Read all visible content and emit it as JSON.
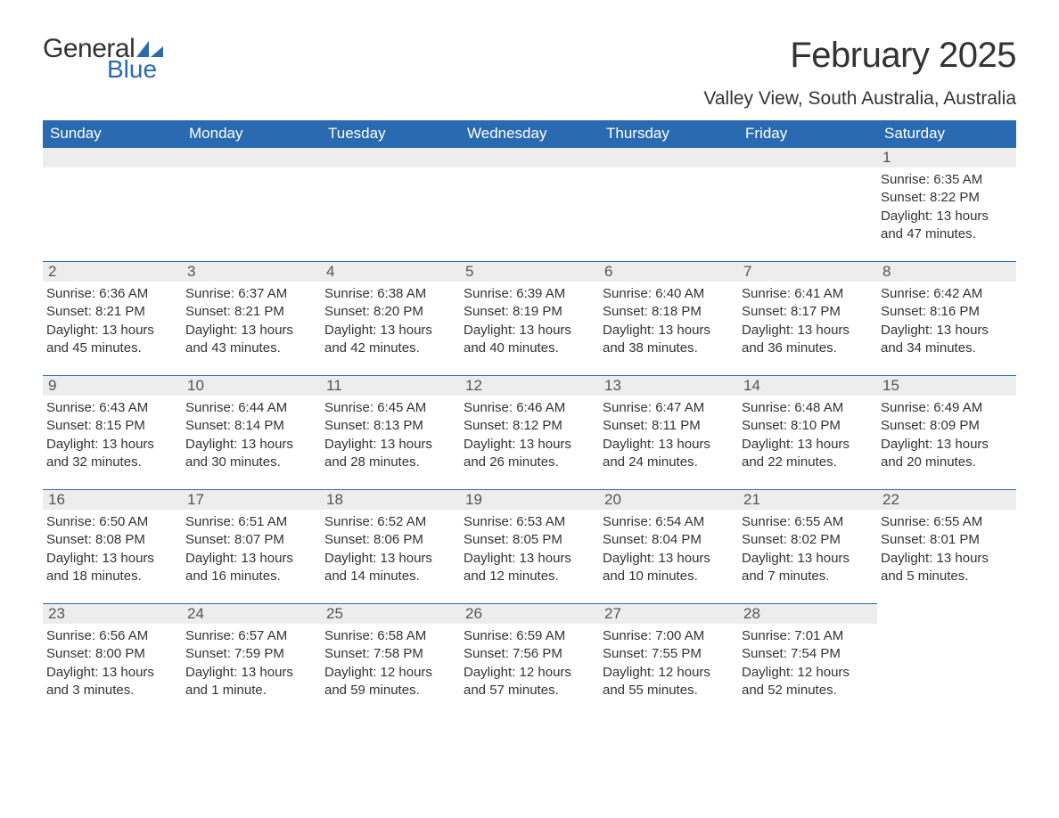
{
  "brand": {
    "general": "General",
    "blue": "Blue"
  },
  "title": "February 2025",
  "location": "Valley View, South Australia, Australia",
  "colors": {
    "header_bg": "#2a6ab0",
    "header_fg": "#ffffff",
    "daynum_bg": "#ededed",
    "border": "#2a6ab0",
    "text": "#333333"
  },
  "dayNames": [
    "Sunday",
    "Monday",
    "Tuesday",
    "Wednesday",
    "Thursday",
    "Friday",
    "Saturday"
  ],
  "grid": {
    "rows": 5,
    "cols": 7,
    "startOffset": 6,
    "daysInMonth": 28
  },
  "days": {
    "1": {
      "sunrise": "6:35 AM",
      "sunset": "8:22 PM",
      "daylight": "13 hours and 47 minutes."
    },
    "2": {
      "sunrise": "6:36 AM",
      "sunset": "8:21 PM",
      "daylight": "13 hours and 45 minutes."
    },
    "3": {
      "sunrise": "6:37 AM",
      "sunset": "8:21 PM",
      "daylight": "13 hours and 43 minutes."
    },
    "4": {
      "sunrise": "6:38 AM",
      "sunset": "8:20 PM",
      "daylight": "13 hours and 42 minutes."
    },
    "5": {
      "sunrise": "6:39 AM",
      "sunset": "8:19 PM",
      "daylight": "13 hours and 40 minutes."
    },
    "6": {
      "sunrise": "6:40 AM",
      "sunset": "8:18 PM",
      "daylight": "13 hours and 38 minutes."
    },
    "7": {
      "sunrise": "6:41 AM",
      "sunset": "8:17 PM",
      "daylight": "13 hours and 36 minutes."
    },
    "8": {
      "sunrise": "6:42 AM",
      "sunset": "8:16 PM",
      "daylight": "13 hours and 34 minutes."
    },
    "9": {
      "sunrise": "6:43 AM",
      "sunset": "8:15 PM",
      "daylight": "13 hours and 32 minutes."
    },
    "10": {
      "sunrise": "6:44 AM",
      "sunset": "8:14 PM",
      "daylight": "13 hours and 30 minutes."
    },
    "11": {
      "sunrise": "6:45 AM",
      "sunset": "8:13 PM",
      "daylight": "13 hours and 28 minutes."
    },
    "12": {
      "sunrise": "6:46 AM",
      "sunset": "8:12 PM",
      "daylight": "13 hours and 26 minutes."
    },
    "13": {
      "sunrise": "6:47 AM",
      "sunset": "8:11 PM",
      "daylight": "13 hours and 24 minutes."
    },
    "14": {
      "sunrise": "6:48 AM",
      "sunset": "8:10 PM",
      "daylight": "13 hours and 22 minutes."
    },
    "15": {
      "sunrise": "6:49 AM",
      "sunset": "8:09 PM",
      "daylight": "13 hours and 20 minutes."
    },
    "16": {
      "sunrise": "6:50 AM",
      "sunset": "8:08 PM",
      "daylight": "13 hours and 18 minutes."
    },
    "17": {
      "sunrise": "6:51 AM",
      "sunset": "8:07 PM",
      "daylight": "13 hours and 16 minutes."
    },
    "18": {
      "sunrise": "6:52 AM",
      "sunset": "8:06 PM",
      "daylight": "13 hours and 14 minutes."
    },
    "19": {
      "sunrise": "6:53 AM",
      "sunset": "8:05 PM",
      "daylight": "13 hours and 12 minutes."
    },
    "20": {
      "sunrise": "6:54 AM",
      "sunset": "8:04 PM",
      "daylight": "13 hours and 10 minutes."
    },
    "21": {
      "sunrise": "6:55 AM",
      "sunset": "8:02 PM",
      "daylight": "13 hours and 7 minutes."
    },
    "22": {
      "sunrise": "6:55 AM",
      "sunset": "8:01 PM",
      "daylight": "13 hours and 5 minutes."
    },
    "23": {
      "sunrise": "6:56 AM",
      "sunset": "8:00 PM",
      "daylight": "13 hours and 3 minutes."
    },
    "24": {
      "sunrise": "6:57 AM",
      "sunset": "7:59 PM",
      "daylight": "13 hours and 1 minute."
    },
    "25": {
      "sunrise": "6:58 AM",
      "sunset": "7:58 PM",
      "daylight": "12 hours and 59 minutes."
    },
    "26": {
      "sunrise": "6:59 AM",
      "sunset": "7:56 PM",
      "daylight": "12 hours and 57 minutes."
    },
    "27": {
      "sunrise": "7:00 AM",
      "sunset": "7:55 PM",
      "daylight": "12 hours and 55 minutes."
    },
    "28": {
      "sunrise": "7:01 AM",
      "sunset": "7:54 PM",
      "daylight": "12 hours and 52 minutes."
    }
  },
  "labels": {
    "sunrise": "Sunrise: ",
    "sunset": "Sunset: ",
    "daylight": "Daylight: "
  }
}
